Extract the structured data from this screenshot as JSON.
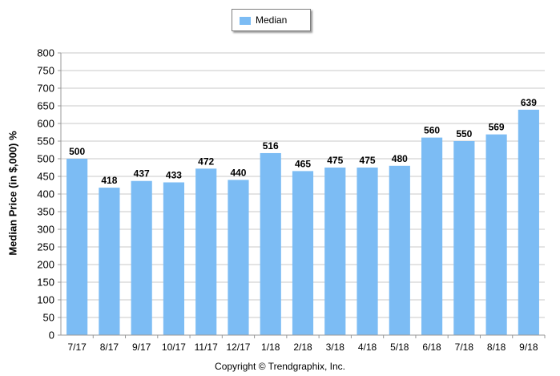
{
  "chart_data": {
    "type": "bar",
    "categories": [
      "7/17",
      "8/17",
      "9/17",
      "10/17",
      "11/17",
      "12/17",
      "1/18",
      "2/18",
      "3/18",
      "4/18",
      "5/18",
      "6/18",
      "7/18",
      "8/18",
      "9/18"
    ],
    "series": [
      {
        "name": "Median",
        "values": [
          500,
          418,
          437,
          433,
          472,
          440,
          516,
          465,
          475,
          475,
          480,
          560,
          550,
          569,
          639
        ]
      }
    ],
    "ylabel": "Median Price (in $,000) %",
    "xlabel": "",
    "ylim": [
      0,
      800
    ],
    "yticks": [
      0,
      50,
      100,
      150,
      200,
      250,
      300,
      350,
      400,
      450,
      500,
      550,
      600,
      650,
      700,
      750,
      800
    ],
    "grid": true,
    "legend": "top-center",
    "colors": {
      "bar": "#7cbcf4",
      "grid": "#c8c8c8"
    }
  },
  "footer": {
    "copyright": "Copyright © Trendgraphix, Inc."
  }
}
